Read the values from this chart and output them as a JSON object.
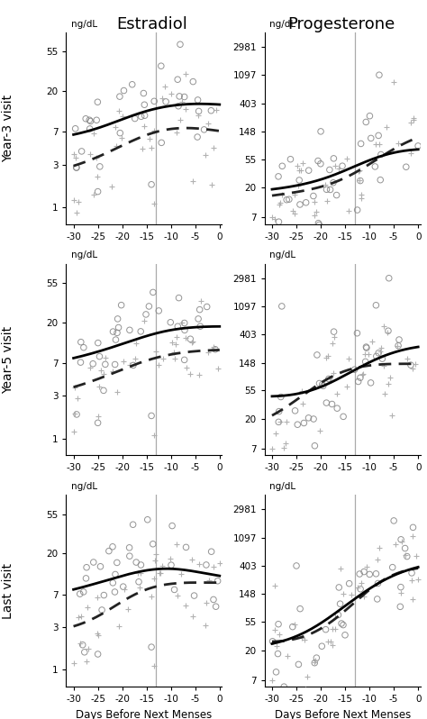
{
  "col_titles": [
    "Estradiol",
    "Progesterone"
  ],
  "row_labels": [
    "Year-3 visit",
    "Year-5 visit",
    "Last visit"
  ],
  "estradiol_yticks": [
    1,
    3,
    7,
    20,
    55
  ],
  "estradiol_ylim_log": [
    0.65,
    90
  ],
  "progesterone_yticks": [
    7,
    20,
    55,
    148,
    403,
    1097,
    2981
  ],
  "progesterone_ylim_log": [
    5.5,
    5000
  ],
  "xlim": [
    -31.5,
    0.5
  ],
  "xticks": [
    -30,
    -25,
    -20,
    -15,
    -10,
    -5,
    0
  ],
  "vline_x": -13,
  "xlabel": "Days Before Next Menses",
  "unit_label": "ng/dL",
  "background_color": "#ffffff",
  "circle_color": "#888888",
  "plus_color": "#aaaaaa",
  "solid_line_color": "#000000",
  "dashed_line_color": "#222222"
}
